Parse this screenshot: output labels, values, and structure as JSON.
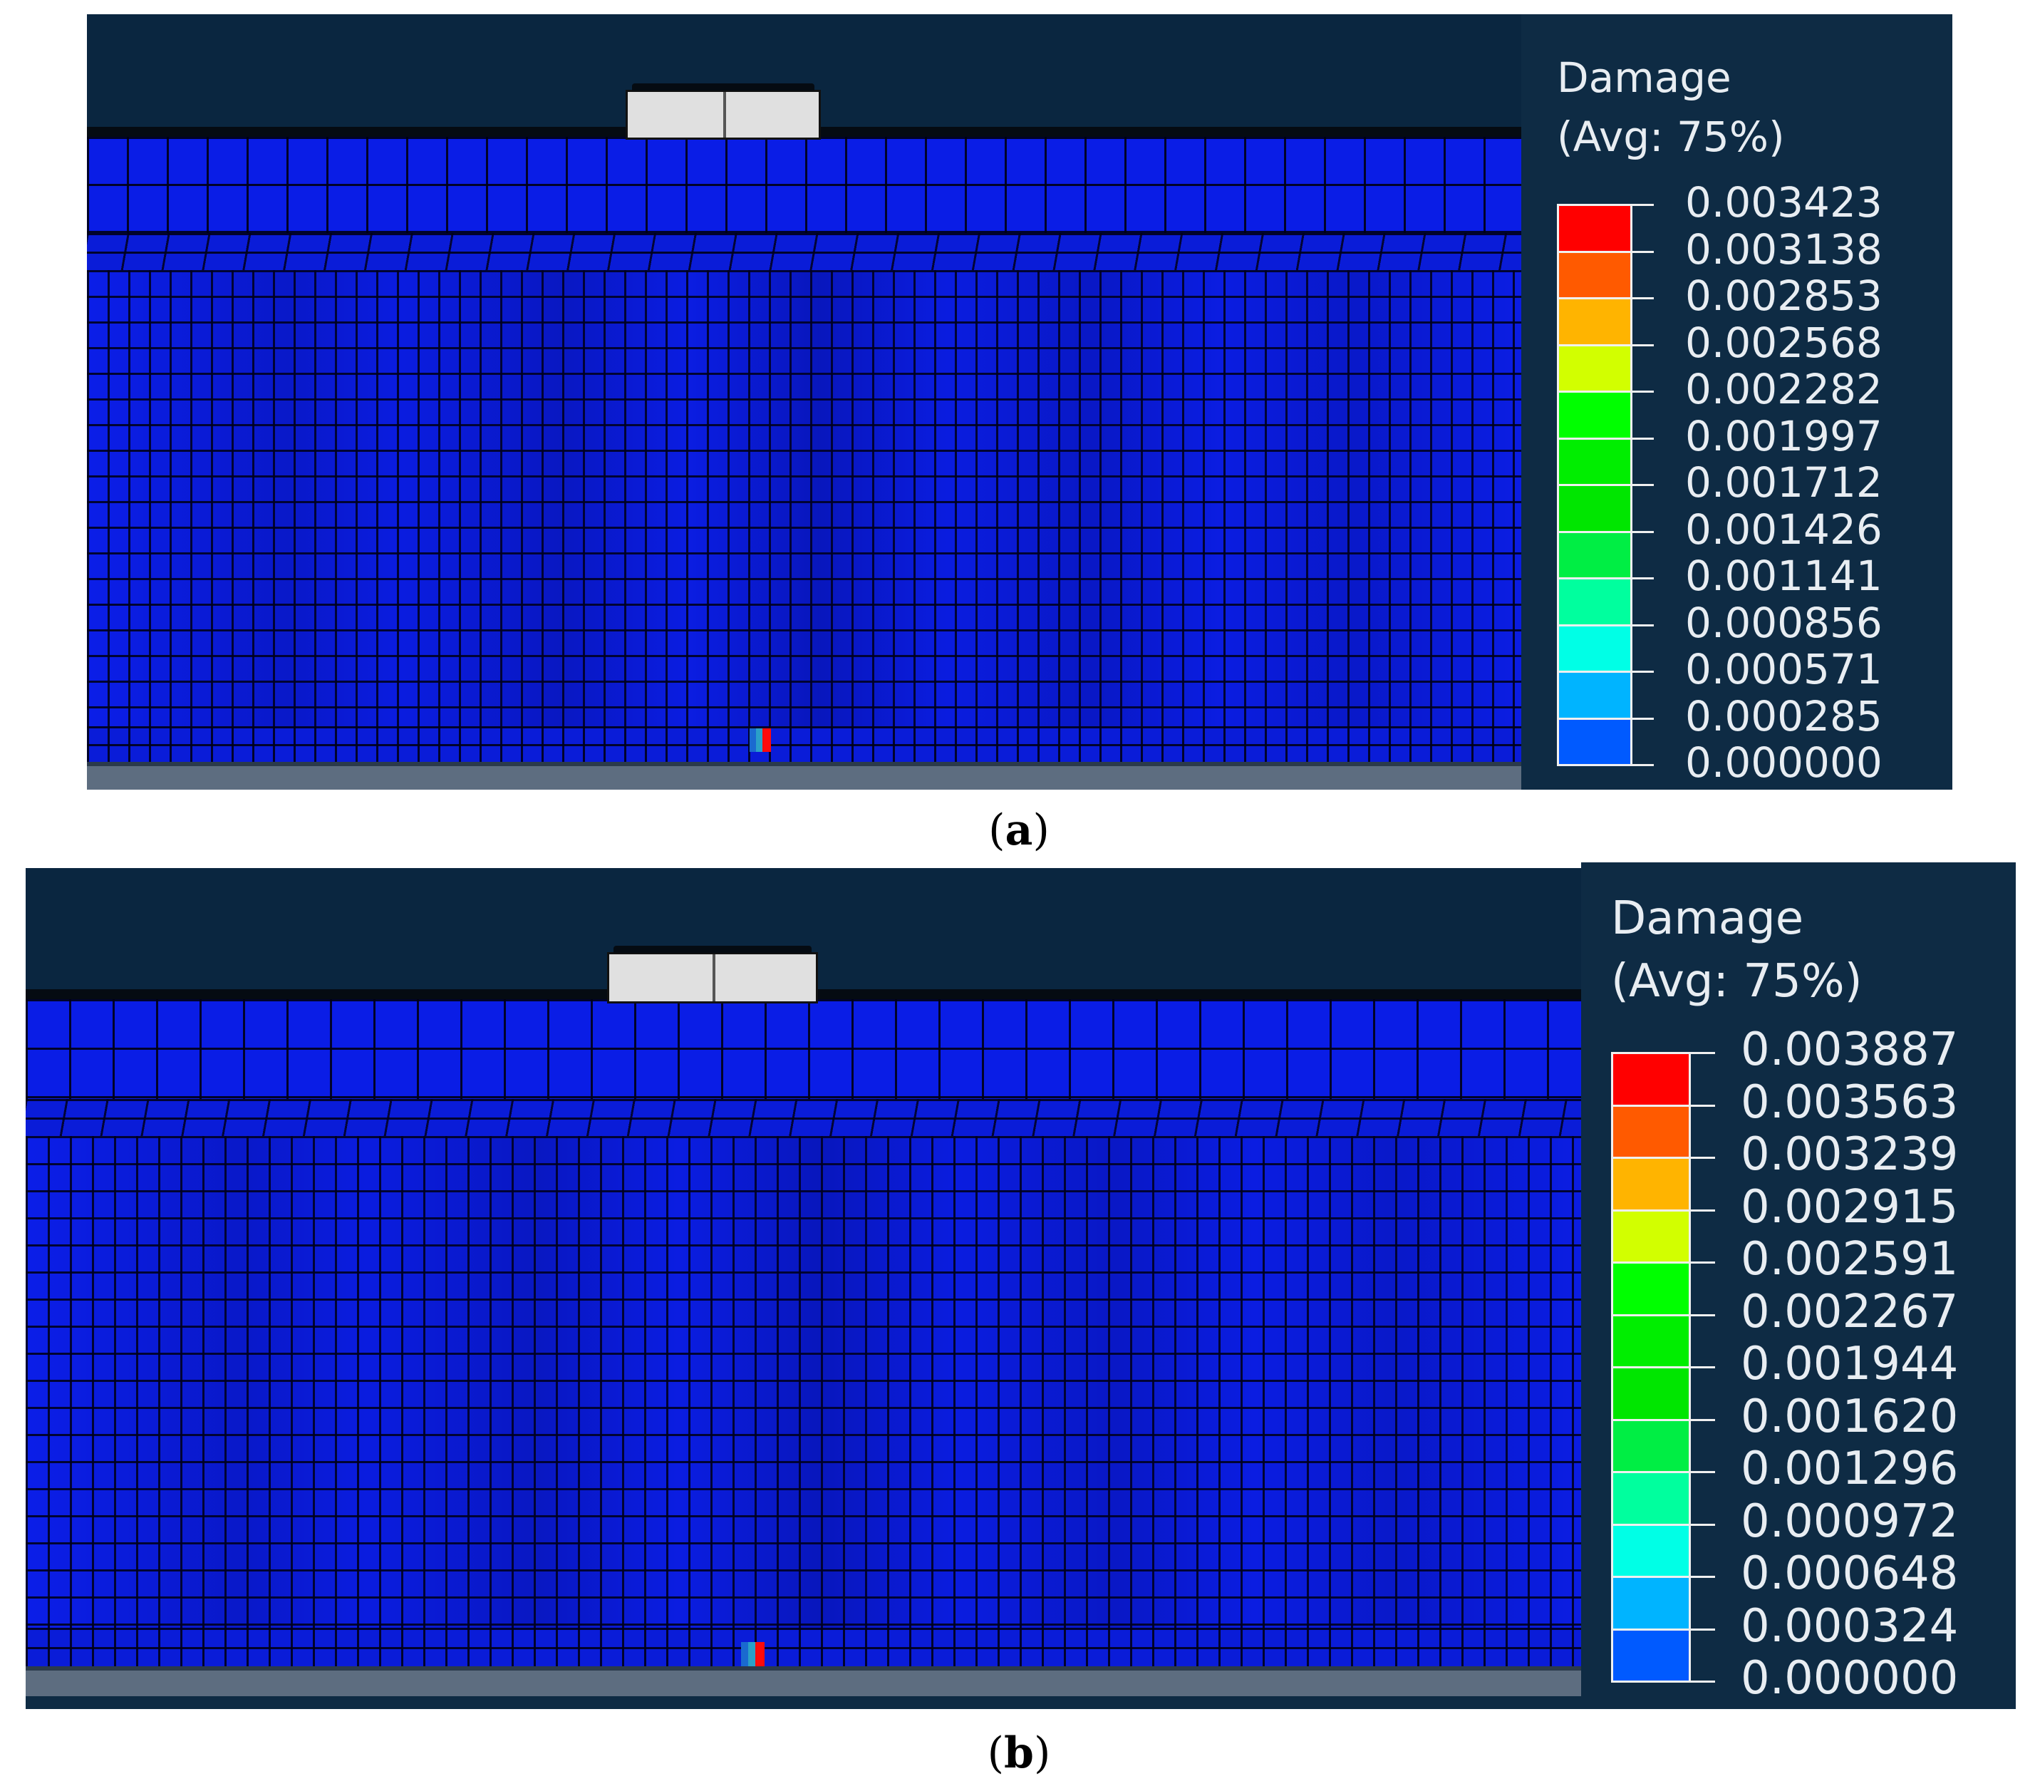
{
  "figures": [
    {
      "caption_label": "a",
      "legend": {
        "title_line1": "Damage",
        "title_line2": "(Avg: 75%)",
        "values": [
          "0.003423",
          "0.003138",
          "0.002853",
          "0.002568",
          "0.002282",
          "0.001997",
          "0.001712",
          "0.001426",
          "0.001141",
          "0.000856",
          "0.000571",
          "0.000285",
          "0.000000"
        ],
        "colors": [
          "#ff0000",
          "#ff5a00",
          "#ffb400",
          "#d2ff00",
          "#00ff00",
          "#00ee00",
          "#00e600",
          "#00ee44",
          "#00ff9e",
          "#00ffe6",
          "#00b4ff",
          "#005aff",
          "#0000ff"
        ]
      }
    },
    {
      "caption_label": "b",
      "legend": {
        "title_line1": "Damage",
        "title_line2": "(Avg: 75%)",
        "values": [
          "0.003887",
          "0.003563",
          "0.003239",
          "0.002915",
          "0.002591",
          "0.002267",
          "0.001944",
          "0.001620",
          "0.001296",
          "0.000972",
          "0.000648",
          "0.000324",
          "0.000000"
        ],
        "colors": [
          "#ff0000",
          "#ff5a00",
          "#ffb400",
          "#d2ff00",
          "#00ff00",
          "#00ee00",
          "#00e600",
          "#00ee44",
          "#00ff9e",
          "#00ffe6",
          "#00b4ff",
          "#005aff",
          "#0000ff"
        ]
      }
    }
  ]
}
